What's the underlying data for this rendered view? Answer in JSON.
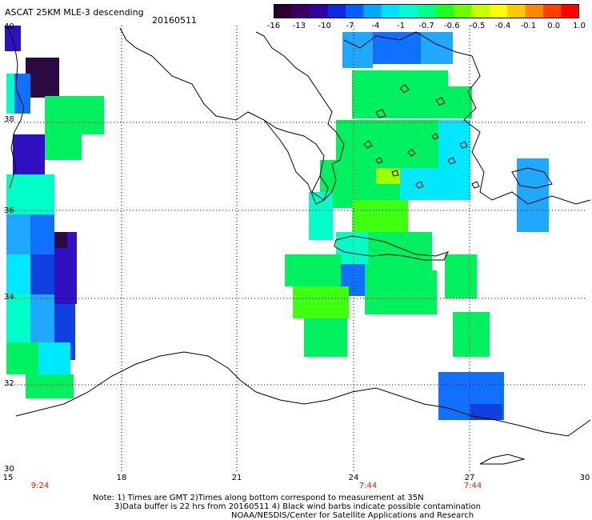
{
  "header": {
    "title": "ASCAT 25KM MLE-3 descending",
    "date": "20160511"
  },
  "colorbar": {
    "ticks": [
      "-16",
      "-13",
      "-10",
      "-7",
      "-4",
      "-1",
      "-0.7",
      "-0.6",
      "-0.5",
      "-0.4",
      "-0.1",
      "0.0",
      "1.0"
    ],
    "colors": [
      "#2a0030",
      "#3a0060",
      "#3000a0",
      "#1028e0",
      "#0060ff",
      "#00a8ff",
      "#00e0ff",
      "#00ffd0",
      "#00ff90",
      "#20ff20",
      "#70ff00",
      "#c8ff00",
      "#ffff00",
      "#ffc800",
      "#ff8800",
      "#ff4000",
      "#ff0000"
    ]
  },
  "axes": {
    "lat_labels": [
      "40",
      "38",
      "36",
      "34",
      "32",
      "30"
    ],
    "lon_labels": [
      "15",
      "18",
      "21",
      "24",
      "27",
      "30"
    ],
    "time_labels": [
      "9:24",
      "7:44",
      "7:44"
    ]
  },
  "notes": {
    "line1": "Note: 1) Times are GMT 2)Times along bottom correspond to measurement at 35N",
    "line2": "3)Data buffer is 22 hrs from 20160511 4) Black wind barbs indicate possible contamination",
    "line3": "NOAA/NESDIS/Center for Satellite Applications and Research"
  },
  "map": {
    "lat_range": [
      30,
      40
    ],
    "lon_range": [
      15,
      30
    ],
    "grid": "dotted",
    "colors": {
      "dark_purple": "#2a0a40",
      "purple": "#4a0090",
      "violet": "#3010c0",
      "blue": "#1040e0",
      "med_blue": "#1070ff",
      "light_blue": "#20a8ff",
      "cyan": "#00e8ff",
      "aqua": "#00ffc8",
      "green": "#00f060",
      "lime": "#40ff10",
      "yellowgreen": "#a0ff00",
      "coast": "#000000"
    }
  }
}
